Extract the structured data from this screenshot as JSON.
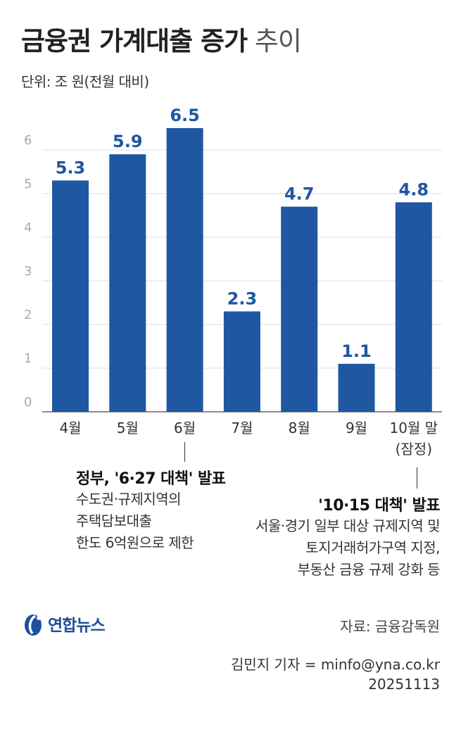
{
  "title": {
    "bold": "금융권 가계대출 증가",
    "light": "추이"
  },
  "unit": "단위: 조 원(전월 대비)",
  "chart_data": {
    "type": "bar",
    "categories": [
      "4월",
      "5월",
      "6월",
      "7월",
      "8월",
      "9월",
      "10월 말"
    ],
    "category_notes": [
      "",
      "",
      "",
      "",
      "",
      "",
      "(잠정)"
    ],
    "values": [
      5.3,
      5.9,
      6.5,
      2.3,
      4.7,
      1.1,
      4.8
    ],
    "value_labels": [
      "5.3",
      "5.9",
      "6.5",
      "2.3",
      "4.7",
      "1.1",
      "4.8"
    ],
    "y_ticks": [
      "0",
      "1",
      "2",
      "3",
      "4",
      "5",
      "6"
    ],
    "ylim": [
      0,
      6.5
    ],
    "grid": true,
    "bar_color": "#1f57a3",
    "label_color": "#1f57a3"
  },
  "annotations": {
    "june": {
      "head": "정부, '6·27 대책' 발표",
      "lines": [
        "수도권·규제지역의",
        "주택담보대출",
        "한도 6억원으로 제한"
      ]
    },
    "october": {
      "head": "'10·15 대책' 발표",
      "lines": [
        "서울·경기 일부 대상 규제지역 및",
        "토지거래허가구역 지정,",
        "부동산 금융 규제 강화 등"
      ]
    }
  },
  "logo": {
    "text": "연합뉴스",
    "icon": "yonhap-logo-icon",
    "color": "#1e4f9c"
  },
  "source": "자료: 금융감독원",
  "credit": {
    "byline": "김민지 기자 = minfo@yna.co.kr",
    "date": "20251113"
  }
}
